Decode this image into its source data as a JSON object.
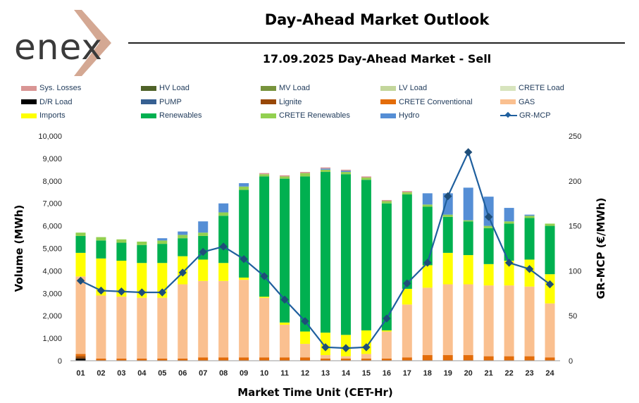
{
  "header": {
    "logo_text": "enex",
    "title": "Day-Ahead Market Outlook",
    "subtitle": "17.09.2025  Day-Ahead Market - Sell"
  },
  "colors": {
    "sys_losses": "#d99594",
    "hv_load": "#4f6228",
    "mv_load": "#77933c",
    "lv_load": "#c3d69b",
    "crete_load": "#d7e4bd",
    "dr_load": "#000000",
    "pump": "#376092",
    "lignite": "#984807",
    "crete_conventional": "#e36c09",
    "gas": "#fac090",
    "imports": "#ffff00",
    "renewables": "#00b050",
    "crete_renewables": "#92d050",
    "hydro": "#558ed5",
    "gr_mcp": "#1f5f9e",
    "logo_chevron": "#d4a893"
  },
  "legend": [
    {
      "label": "Sys. Losses",
      "key": "sys_losses",
      "kind": "bar"
    },
    {
      "label": "HV Load",
      "key": "hv_load",
      "kind": "bar"
    },
    {
      "label": "MV Load",
      "key": "mv_load",
      "kind": "bar"
    },
    {
      "label": "LV Load",
      "key": "lv_load",
      "kind": "bar"
    },
    {
      "label": "CRETE Load",
      "key": "crete_load",
      "kind": "bar"
    },
    {
      "label": "D/R Load",
      "key": "dr_load",
      "kind": "bar"
    },
    {
      "label": "PUMP",
      "key": "pump",
      "kind": "bar"
    },
    {
      "label": "Lignite",
      "key": "lignite",
      "kind": "bar"
    },
    {
      "label": "CRETE Conventional",
      "key": "crete_conventional",
      "kind": "bar"
    },
    {
      "label": "GAS",
      "key": "gas",
      "kind": "bar"
    },
    {
      "label": "Imports",
      "key": "imports",
      "kind": "bar"
    },
    {
      "label": "Renewables",
      "key": "renewables",
      "kind": "bar"
    },
    {
      "label": "CRETE Renewables",
      "key": "crete_renewables",
      "kind": "bar"
    },
    {
      "label": "Hydro",
      "key": "hydro",
      "kind": "bar"
    },
    {
      "label": "GR-MCP",
      "key": "gr_mcp",
      "kind": "line"
    }
  ],
  "chart_data": {
    "type": "bar",
    "stacked": true,
    "title": "17.09.2025  Day-Ahead Market - Sell",
    "xlabel": "Market Time Unit (CET-Hr)",
    "ylabel": "Volume (MWh)",
    "y2label": "GR-MCP (€/MWh)",
    "ylim": [
      0,
      10000
    ],
    "y2lim": [
      0,
      250
    ],
    "yticks": [
      0,
      1000,
      2000,
      3000,
      4000,
      5000,
      6000,
      7000,
      8000,
      9000,
      10000
    ],
    "yticklabels": [
      "0",
      "1,000",
      "2,000",
      "3,000",
      "4,000",
      "5,000",
      "6,000",
      "7,000",
      "8,000",
      "9,000",
      "10,000"
    ],
    "y2ticks": [
      0,
      50,
      100,
      150,
      200,
      250
    ],
    "y2ticklabels": [
      "0",
      "50",
      "100",
      "150",
      "200",
      "250"
    ],
    "categories": [
      "01",
      "02",
      "03",
      "04",
      "05",
      "06",
      "07",
      "08",
      "09",
      "10",
      "11",
      "12",
      "13",
      "14",
      "15",
      "16",
      "17",
      "18",
      "19",
      "20",
      "21",
      "22",
      "23",
      "24"
    ],
    "series": [
      {
        "name": "D/R Load",
        "key": "dr_load",
        "values": [
          100,
          0,
          0,
          0,
          0,
          0,
          0,
          0,
          0,
          0,
          0,
          0,
          0,
          0,
          0,
          0,
          0,
          0,
          0,
          0,
          0,
          0,
          0,
          0
        ]
      },
      {
        "name": "Lignite",
        "key": "lignite",
        "values": [
          100,
          0,
          0,
          0,
          0,
          0,
          0,
          0,
          0,
          0,
          0,
          0,
          0,
          0,
          0,
          0,
          0,
          0,
          0,
          0,
          0,
          0,
          0,
          0
        ]
      },
      {
        "name": "CRETE Conventional",
        "key": "crete_conventional",
        "values": [
          100,
          100,
          100,
          100,
          100,
          100,
          150,
          150,
          150,
          150,
          150,
          150,
          100,
          100,
          100,
          100,
          150,
          250,
          250,
          250,
          200,
          200,
          200,
          150
        ]
      },
      {
        "name": "GAS",
        "key": "gas",
        "values": [
          3450,
          2800,
          2750,
          2700,
          2700,
          3300,
          3400,
          3400,
          3450,
          2650,
          1450,
          600,
          150,
          100,
          200,
          1200,
          2350,
          3000,
          3150,
          3150,
          3150,
          3150,
          3100,
          2400
        ]
      },
      {
        "name": "Imports",
        "key": "imports",
        "values": [
          1050,
          1650,
          1600,
          1550,
          1550,
          1250,
          950,
          800,
          100,
          50,
          100,
          550,
          1000,
          950,
          1050,
          50,
          700,
          1000,
          1400,
          1300,
          950,
          1100,
          1200,
          1300
        ]
      },
      {
        "name": "Renewables",
        "key": "renewables",
        "values": [
          750,
          800,
          800,
          800,
          850,
          800,
          1050,
          2100,
          3900,
          5350,
          6400,
          6900,
          7150,
          7150,
          6700,
          5650,
          4200,
          2600,
          1600,
          1500,
          1600,
          1650,
          1850,
          2150
        ]
      },
      {
        "name": "CRETE Renewables",
        "key": "crete_renewables",
        "values": [
          150,
          150,
          150,
          150,
          150,
          150,
          150,
          150,
          150,
          100,
          100,
          150,
          100,
          100,
          100,
          100,
          100,
          100,
          100,
          50,
          100,
          100,
          100,
          100
        ]
      },
      {
        "name": "Hydro",
        "key": "hydro",
        "values": [
          0,
          0,
          0,
          0,
          100,
          150,
          500,
          400,
          150,
          0,
          0,
          0,
          50,
          50,
          0,
          0,
          0,
          500,
          950,
          1450,
          1300,
          600,
          50,
          0
        ]
      },
      {
        "name": "Sys. Losses",
        "key": "sys_losses",
        "values": [
          0,
          0,
          0,
          0,
          0,
          0,
          0,
          0,
          0,
          50,
          50,
          50,
          50,
          50,
          50,
          50,
          50,
          0,
          0,
          0,
          0,
          0,
          0,
          0
        ]
      }
    ],
    "line_series": {
      "name": "GR-MCP",
      "key": "gr_mcp",
      "axis": "right",
      "values": [
        89,
        78,
        77,
        76,
        76,
        98,
        121,
        127,
        113,
        94,
        68,
        44,
        15,
        14,
        15,
        47,
        86,
        109,
        183,
        232,
        160,
        109,
        102,
        85
      ]
    }
  }
}
